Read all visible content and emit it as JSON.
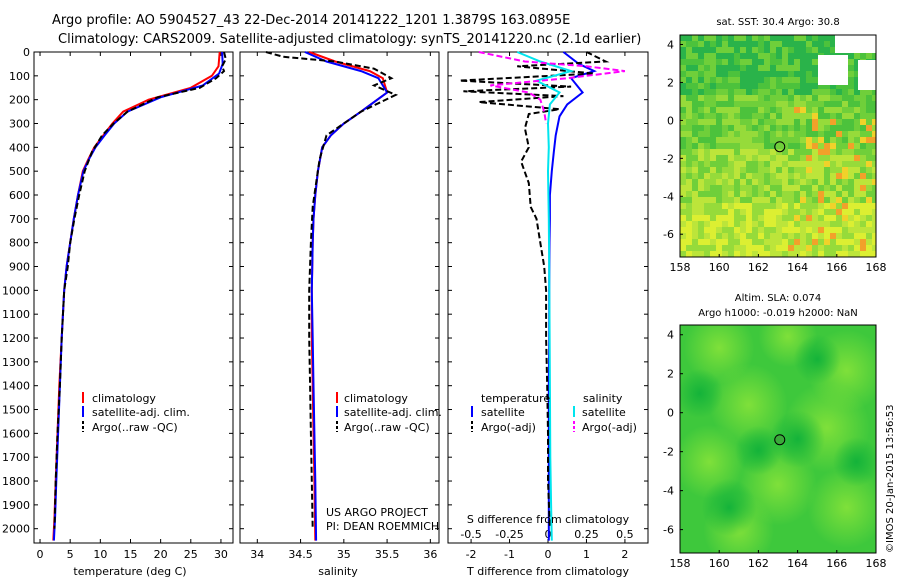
{
  "header": {
    "line1": "Argo profile: AO 5904527_43 22-Dec-2014 20141222_1201 1.3879S 163.0895E",
    "line2": "Climatology: CARS2009. Satellite-adjusted climatology: synTS_20141220.nc (2.1d earlier)"
  },
  "timestamp": "©IMOS 20-Jan-2015 13:56:53",
  "colors": {
    "climatology": "#ff0000",
    "satellite": "#0000ff",
    "argo": "#000000",
    "sal_satellite": "#00e5ee",
    "sal_argo": "#ff00ff"
  },
  "chart_data": [
    {
      "type": "line",
      "id": "temperature",
      "xlabel": "temperature (deg C)",
      "ylabel": "",
      "xlim": [
        -1,
        32
      ],
      "ylim": [
        0,
        2060
      ],
      "y_inverted": true,
      "xticks": [
        0,
        5,
        10,
        15,
        20,
        25,
        30
      ],
      "yticks": [
        0,
        100,
        200,
        300,
        400,
        500,
        600,
        700,
        800,
        900,
        1000,
        1100,
        1200,
        1300,
        1400,
        1500,
        1600,
        1700,
        1800,
        1900,
        2000
      ],
      "legend": [
        "climatology",
        "satellite-adj. clim.",
        "Argo(..raw -QC)"
      ],
      "legend_position": "bottom-center",
      "series": [
        {
          "name": "climatology",
          "style": "solid",
          "color_key": "climatology",
          "x": [
            29.8,
            29.6,
            28.5,
            25,
            18,
            13.8,
            12,
            10.5,
            9,
            8,
            7.1,
            6.3,
            5.6,
            5,
            4.4,
            4,
            3.6,
            3.2,
            2.9,
            2.6,
            2.4,
            2.2
          ],
          "y": [
            0,
            60,
            100,
            150,
            200,
            250,
            300,
            350,
            400,
            450,
            500,
            600,
            700,
            800,
            900,
            1000,
            1200,
            1400,
            1600,
            1800,
            1950,
            2050
          ]
        },
        {
          "name": "satellite-adj. clim.",
          "style": "solid",
          "color_key": "satellite",
          "x": [
            30.2,
            30.3,
            29.7,
            27,
            20,
            14.5,
            12.3,
            10.7,
            9.2,
            8.1,
            7.2,
            6.3,
            5.6,
            5,
            4.4,
            4,
            3.6,
            3.3,
            3,
            2.7,
            2.5,
            2.3
          ],
          "y": [
            0,
            50,
            90,
            140,
            190,
            250,
            300,
            350,
            400,
            450,
            500,
            600,
            700,
            800,
            900,
            1000,
            1200,
            1400,
            1600,
            1800,
            1950,
            2050
          ]
        },
        {
          "name": "Argo(..raw -QC)",
          "style": "dashed",
          "color_key": "argo",
          "x": [
            30.5,
            30.8,
            30.2,
            30.5,
            29.2,
            26.5,
            19.5,
            14.5,
            12.2,
            10.3,
            8.6,
            7.4,
            6.5,
            5.7,
            5,
            4.6,
            4,
            3.6,
            3.3,
            2.9,
            2.6,
            2.4
          ],
          "y": [
            0,
            30,
            60,
            80,
            110,
            150,
            190,
            250,
            300,
            350,
            420,
            500,
            600,
            700,
            800,
            900,
            1000,
            1200,
            1400,
            1600,
            1800,
            2000
          ]
        }
      ]
    },
    {
      "type": "line",
      "id": "salinity",
      "xlabel": "salinity",
      "ylabel": "",
      "xlim": [
        33.8,
        36.1
      ],
      "ylim": [
        0,
        2060
      ],
      "y_inverted": true,
      "xticks": [
        34,
        34.5,
        35,
        35.5,
        36
      ],
      "legend": [
        "climatology",
        "satellite-adj. clim.",
        "Argo(..raw -QC)"
      ],
      "legend_position": "bottom-center",
      "annotation": [
        "US ARGO PROJECT",
        "PI: DEAN ROEMMICH"
      ],
      "series": [
        {
          "name": "climatology",
          "style": "solid",
          "color_key": "climatology",
          "x": [
            34.6,
            34.9,
            35.3,
            35.45,
            35.5,
            35.2,
            35.0,
            34.85,
            34.75,
            34.7,
            34.67,
            34.65,
            34.64,
            34.63,
            34.63,
            34.64,
            34.65,
            34.66,
            34.67
          ],
          "y": [
            0,
            40,
            80,
            110,
            170,
            250,
            300,
            350,
            400,
            500,
            600,
            700,
            800,
            1000,
            1200,
            1400,
            1600,
            1800,
            2050
          ]
        },
        {
          "name": "satellite-adj. clim.",
          "style": "solid",
          "color_key": "satellite",
          "x": [
            34.55,
            34.8,
            35.2,
            35.4,
            35.5,
            35.2,
            35.0,
            34.85,
            34.75,
            34.7,
            34.67,
            34.65,
            34.64,
            34.63,
            34.64,
            34.65,
            34.66,
            34.67,
            34.68
          ],
          "y": [
            0,
            40,
            80,
            110,
            170,
            250,
            300,
            350,
            400,
            500,
            600,
            700,
            800,
            1000,
            1200,
            1400,
            1600,
            1800,
            2050
          ]
        },
        {
          "name": "Argo(..raw -QC)",
          "style": "dashed",
          "color_key": "argo",
          "x": [
            34.1,
            34.3,
            34.9,
            35.35,
            35.55,
            35.35,
            35.6,
            35.2,
            35.0,
            34.8,
            34.72,
            34.68,
            34.64,
            34.62,
            34.6,
            34.6,
            34.61,
            34.62,
            34.63,
            34.64
          ],
          "y": [
            0,
            20,
            40,
            70,
            110,
            140,
            180,
            250,
            300,
            350,
            450,
            550,
            650,
            800,
            1000,
            1200,
            1400,
            1600,
            1800,
            2000
          ]
        }
      ]
    },
    {
      "type": "line",
      "id": "differences",
      "xlabel": "T difference from climatology",
      "secondary_xlabel": "S difference from climatology",
      "xlim": [
        -2.6,
        2.6
      ],
      "ylim": [
        0,
        2060
      ],
      "y_inverted": true,
      "xticks": [
        -2,
        -1,
        0,
        1,
        2
      ],
      "secondary_xticks": [
        "-0.5",
        "-0.25",
        "0",
        "0.25",
        "0.5"
      ],
      "secondary_xtick_positions": [
        -2,
        -1,
        0,
        1,
        2
      ],
      "legend_left_title": "temperature",
      "legend_right_title": "salinity",
      "legend": [
        "satellite",
        "Argo(-adj)",
        "satellite",
        "Argo(-adj)"
      ],
      "legend_position": "bottom-center",
      "series": [
        {
          "name": "T satellite",
          "style": "solid",
          "color_key": "satellite",
          "x": [
            0.4,
            0.8,
            1.2,
            0.6,
            0.9,
            0.5,
            0.3,
            0.2,
            0.15,
            0.1,
            0.05,
            0.05,
            0.04,
            0.03,
            0.03,
            0.02,
            0.02,
            0.02,
            0.02,
            0.02
          ],
          "y": [
            0,
            50,
            80,
            110,
            170,
            220,
            270,
            350,
            420,
            500,
            600,
            700,
            800,
            1000,
            1200,
            1400,
            1600,
            1800,
            1950,
            2050
          ]
        },
        {
          "name": "T Argo(-adj)",
          "style": "dashed",
          "color_key": "argo",
          "x": [
            1.0,
            1.5,
            -0.8,
            1.2,
            -2.3,
            0.6,
            -2.2,
            0.4,
            -1.8,
            0.3,
            -0.5,
            -0.6,
            -0.5,
            -0.7,
            -0.5,
            -0.45,
            -0.3,
            -0.25,
            -0.2,
            -0.1,
            -0.05,
            -0.05,
            -0.02,
            0.0,
            0.0,
            0.05
          ],
          "y": [
            0,
            40,
            60,
            90,
            120,
            145,
            165,
            185,
            210,
            240,
            260,
            320,
            400,
            460,
            550,
            650,
            700,
            750,
            800,
            900,
            1000,
            1200,
            1400,
            1600,
            1800,
            2000
          ]
        },
        {
          "name": "S satellite",
          "style": "solid",
          "color_key": "sal_satellite",
          "x": [
            -0.8,
            -0.2,
            0.6,
            -0.3,
            0.3,
            0.05,
            0.0,
            0.02,
            0.0,
            0.02,
            0.03,
            0.04,
            0.05,
            0.06,
            0.08,
            0.1
          ],
          "y": [
            0,
            40,
            80,
            120,
            170,
            220,
            300,
            400,
            500,
            700,
            900,
            1100,
            1400,
            1700,
            1900,
            2050
          ]
        },
        {
          "name": "S Argo(-adj)",
          "style": "dashed",
          "color_key": "sal_argo",
          "x": [
            -1.8,
            -0.6,
            1.0,
            2.0,
            0.5,
            -1.5,
            -0.5,
            -0.2,
            -0.1,
            -0.05
          ],
          "y": [
            0,
            40,
            60,
            80,
            110,
            140,
            170,
            200,
            250,
            300
          ]
        }
      ]
    },
    {
      "type": "heatmap",
      "id": "sst_map",
      "title": "sat. SST: 30.4 Argo: 30.8",
      "xlim": [
        158,
        168
      ],
      "ylim": [
        -7.2,
        4.5
      ],
      "xticks": [
        158,
        160,
        162,
        164,
        166,
        168
      ],
      "yticks": [
        4,
        2,
        0,
        -2,
        -4,
        -6
      ],
      "marker": {
        "lon": 163.0895,
        "lat": -1.3879
      }
    },
    {
      "type": "heatmap",
      "id": "sla_map",
      "title": "Altim. SLA: 0.074",
      "subtitle": "Argo h1000: -0.019 h2000: NaN",
      "xlim": [
        158,
        168
      ],
      "ylim": [
        -7.2,
        4.5
      ],
      "xticks": [
        158,
        160,
        162,
        164,
        166,
        168
      ],
      "yticks": [
        4,
        2,
        0,
        -2,
        -4,
        -6
      ],
      "marker": {
        "lon": 163.0895,
        "lat": -1.3879
      }
    }
  ]
}
